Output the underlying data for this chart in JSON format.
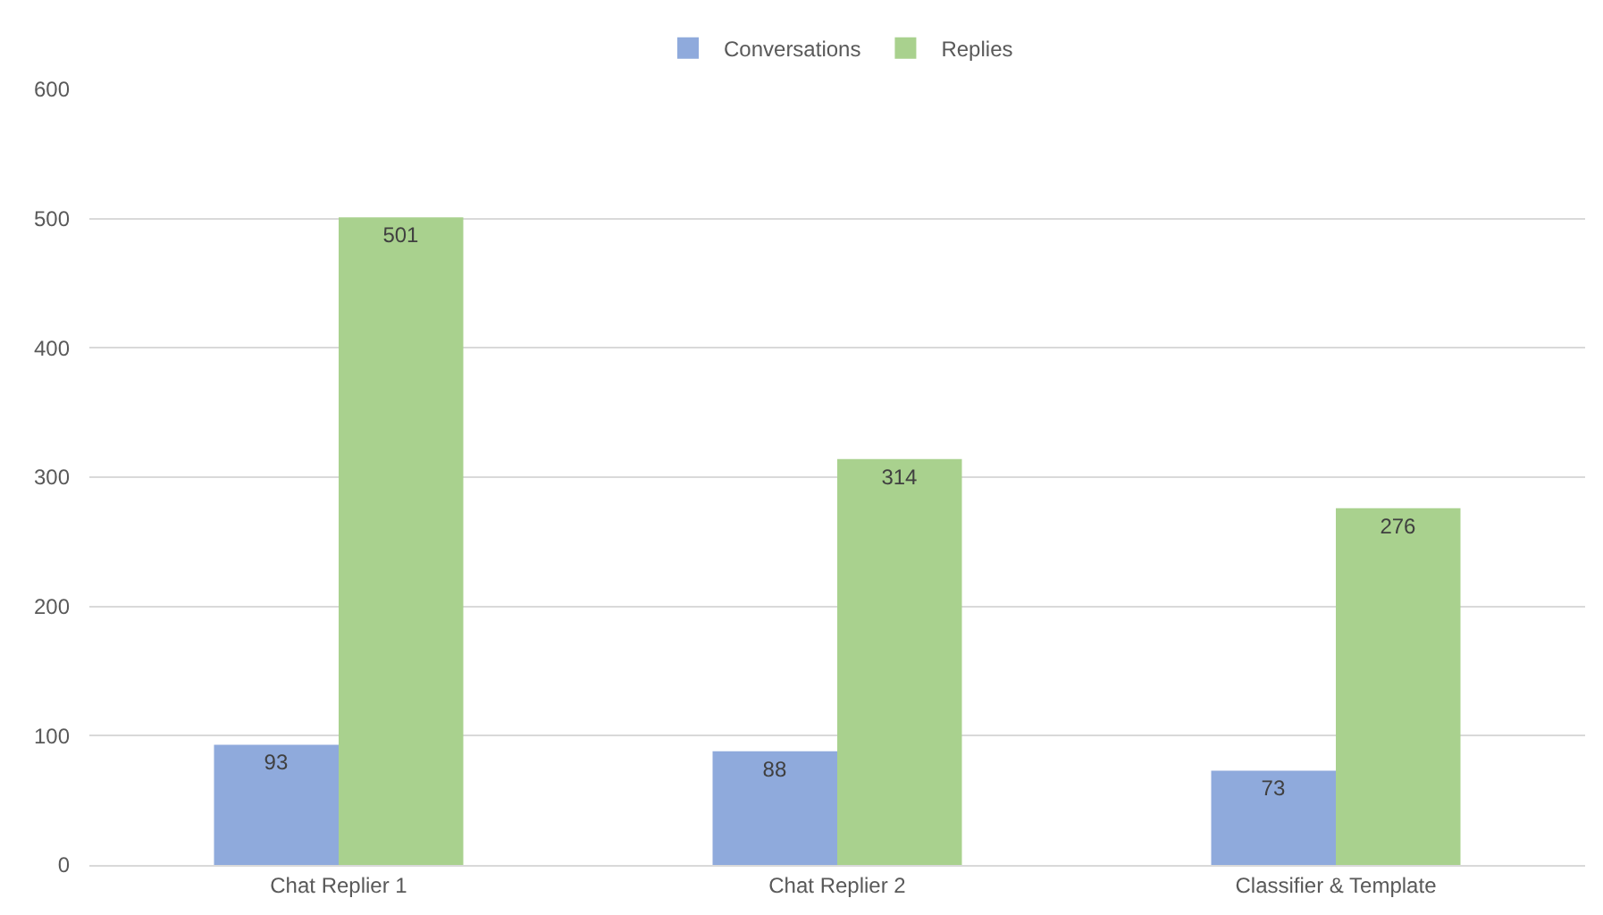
{
  "chart_data": {
    "type": "bar",
    "categories": [
      "Chat Replier 1",
      "Chat Replier 2",
      "Classifier & Template"
    ],
    "series": [
      {
        "name": "Conversations",
        "color": "#8faadc",
        "values": [
          93,
          88,
          73
        ]
      },
      {
        "name": "Replies",
        "color": "#a9d18e",
        "values": [
          501,
          314,
          276
        ]
      }
    ],
    "ylim": [
      0,
      600
    ],
    "yticks": [
      0,
      100,
      200,
      300,
      400,
      500,
      600
    ],
    "grid": "y",
    "legend": "top",
    "data_labels": true
  }
}
